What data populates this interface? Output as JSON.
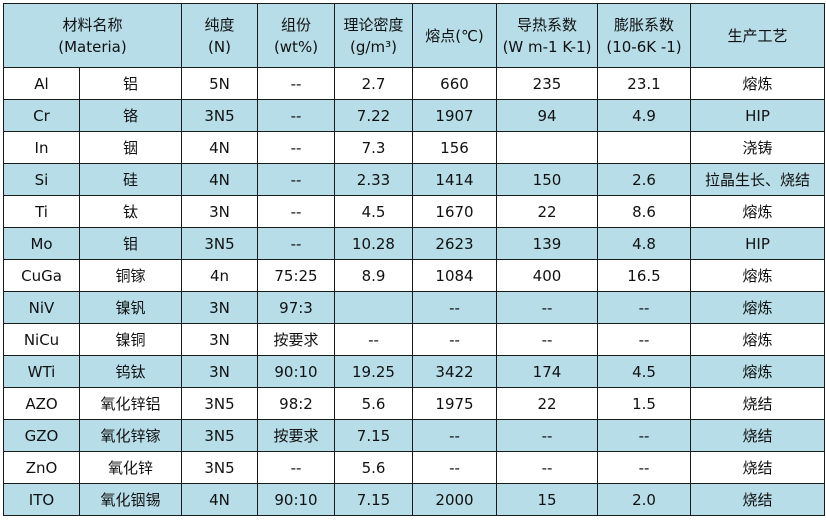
{
  "header": {
    "material": "材料名称",
    "material_en": "(Materia)",
    "purity": "纯度",
    "purity_unit": "(N)",
    "composition": "组份",
    "composition_unit": "(wt%)",
    "density": "理论密度",
    "density_unit": "(g/m³)",
    "melting_point": "熔点(℃)",
    "thermal_conductivity": "导热系数",
    "thermal_conductivity_unit": "(W m-1 K-1)",
    "expansion": "膨胀系数",
    "expansion_unit": "(10-6K -1)",
    "process": "生产工艺"
  },
  "colors": {
    "header_bg": "#b7dde8",
    "alt_row_bg": "#b7dde8"
  },
  "rows": [
    [
      "Al",
      "铝",
      "5N",
      "--",
      "2.7",
      "660",
      "235",
      "23.1",
      "熔炼"
    ],
    [
      "Cr",
      "铬",
      "3N5",
      "--",
      "7.22",
      "1907",
      "94",
      "4.9",
      "HIP"
    ],
    [
      "In",
      "铟",
      "4N",
      "--",
      "7.3",
      "156",
      "",
      "",
      "浇铸"
    ],
    [
      "Si",
      "硅",
      "4N",
      "--",
      "2.33",
      "1414",
      "150",
      "2.6",
      "拉晶生长、烧结"
    ],
    [
      "Ti",
      "钛",
      "3N",
      "--",
      "4.5",
      "1670",
      "22",
      "8.6",
      "熔炼"
    ],
    [
      "Mo",
      "钼",
      "3N5",
      "--",
      "10.28",
      "2623",
      "139",
      "4.8",
      "HIP"
    ],
    [
      "CuGa",
      "铜镓",
      "4n",
      "75:25",
      "8.9",
      "1084",
      "400",
      "16.5",
      "熔炼"
    ],
    [
      "NiV",
      "镍钒",
      "3N",
      "97:3",
      "",
      "--",
      "--",
      "--",
      "熔炼"
    ],
    [
      "NiCu",
      "镍铜",
      "3N",
      "按要求",
      "--",
      "--",
      "--",
      "--",
      "熔炼"
    ],
    [
      "WTi",
      "钨钛",
      "3N",
      "90:10",
      "19.25",
      "3422",
      "174",
      "4.5",
      "熔炼"
    ],
    [
      "AZO",
      "氧化锌铝",
      "3N5",
      "98:2",
      "5.6",
      "1975",
      "22",
      "1.5",
      "烧结"
    ],
    [
      "GZO",
      "氧化锌镓",
      "3N5",
      "按要求",
      "7.15",
      "--",
      "--",
      "--",
      "烧结"
    ],
    [
      "ZnO",
      "氧化锌",
      "3N5",
      "--",
      "5.6",
      "--",
      "--",
      "--",
      "烧结"
    ],
    [
      "ITO",
      "氧化铟锡",
      "4N",
      "90:10",
      "7.15",
      "2000",
      "15",
      "2.0",
      "烧结"
    ]
  ]
}
